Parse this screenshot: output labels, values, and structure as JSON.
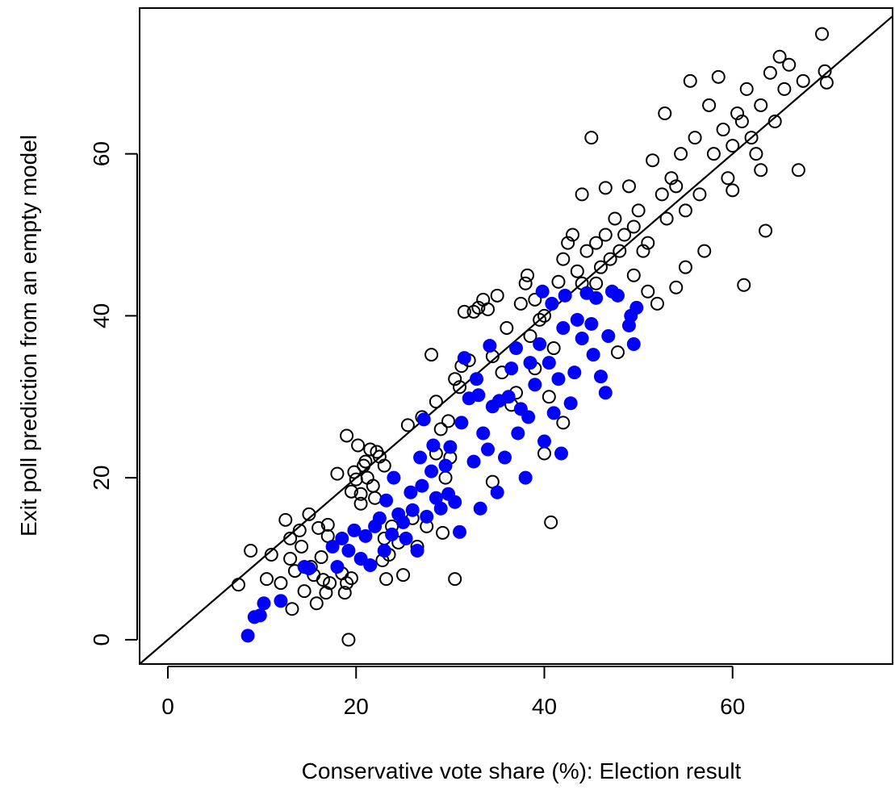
{
  "chart_data": {
    "type": "scatter",
    "title": "",
    "xlabel": "Conservative vote share (%): Election result",
    "ylabel": "Exit poll prediction from an empty model",
    "xlim": [
      -3,
      77
    ],
    "ylim": [
      -3,
      78
    ],
    "x_ticks": [
      0,
      20,
      40,
      60
    ],
    "y_ticks": [
      0,
      20,
      40,
      60
    ],
    "grid": false,
    "legend": "none",
    "reference_line": {
      "slope": 1,
      "intercept": 0
    },
    "colors": {
      "open": "#000000",
      "filled": "#0000ff"
    },
    "series": [
      {
        "style": "open-circle",
        "points": [
          [
            7.5,
            6.8
          ],
          [
            8.8,
            11
          ],
          [
            10.5,
            7.5
          ],
          [
            11,
            10.5
          ],
          [
            12,
            7
          ],
          [
            12.5,
            14.8
          ],
          [
            13,
            12.5
          ],
          [
            13,
            10
          ],
          [
            13.2,
            3.8
          ],
          [
            13.5,
            8.5
          ],
          [
            14,
            13.5
          ],
          [
            14.2,
            11.5
          ],
          [
            14.5,
            6
          ],
          [
            15,
            15.5
          ],
          [
            15.2,
            9
          ],
          [
            15.5,
            8
          ],
          [
            15.8,
            4.5
          ],
          [
            16,
            13.8
          ],
          [
            16.3,
            10.2
          ],
          [
            16.5,
            7.4
          ],
          [
            16.8,
            5.8
          ],
          [
            17,
            14.2
          ],
          [
            17,
            12.8
          ],
          [
            17.2,
            7
          ],
          [
            18,
            20.5
          ],
          [
            18.5,
            8.2
          ],
          [
            18.8,
            5.8
          ],
          [
            19,
            7
          ],
          [
            19,
            25.2
          ],
          [
            19.2,
            0
          ],
          [
            19.5,
            18.3
          ],
          [
            19.5,
            7.6
          ],
          [
            19.8,
            20.7
          ],
          [
            20,
            19.8
          ],
          [
            20.2,
            24
          ],
          [
            20.5,
            18
          ],
          [
            20.5,
            16.8
          ],
          [
            20.8,
            21.5
          ],
          [
            21,
            22
          ],
          [
            21.2,
            20
          ],
          [
            21.5,
            23.5
          ],
          [
            21.8,
            19
          ],
          [
            22,
            17.5
          ],
          [
            22.2,
            23.2
          ],
          [
            22.5,
            22.6
          ],
          [
            22.8,
            9.8
          ],
          [
            23,
            21.5
          ],
          [
            23,
            12.5
          ],
          [
            23.2,
            7.5
          ],
          [
            23.5,
            10.5
          ],
          [
            23.8,
            14
          ],
          [
            24.5,
            12
          ],
          [
            25,
            8
          ],
          [
            25.5,
            26.5
          ],
          [
            26,
            15
          ],
          [
            26.5,
            11.5
          ],
          [
            27,
            27.5
          ],
          [
            27.5,
            14
          ],
          [
            28,
            35.2
          ],
          [
            28.5,
            29.4
          ],
          [
            28.5,
            23
          ],
          [
            29,
            26
          ],
          [
            29.2,
            13.2
          ],
          [
            29.5,
            20
          ],
          [
            29.8,
            27
          ],
          [
            30,
            22.5
          ],
          [
            30.5,
            32.2
          ],
          [
            30.5,
            7.5
          ],
          [
            31,
            31.2
          ],
          [
            31.2,
            33.8
          ],
          [
            31.5,
            40.5
          ],
          [
            32,
            34.5
          ],
          [
            32.5,
            40.5
          ],
          [
            33,
            41
          ],
          [
            33.5,
            42
          ],
          [
            34,
            40.8
          ],
          [
            34.5,
            35
          ],
          [
            34.5,
            19.5
          ],
          [
            35,
            42.5
          ],
          [
            35.5,
            33
          ],
          [
            36,
            38.5
          ],
          [
            36.5,
            29
          ],
          [
            37,
            30.5
          ],
          [
            37.5,
            41.5
          ],
          [
            38,
            44
          ],
          [
            38.2,
            45
          ],
          [
            38.5,
            37.5
          ],
          [
            39,
            42
          ],
          [
            39,
            33.5
          ],
          [
            39.5,
            39.5
          ],
          [
            40,
            40
          ],
          [
            40,
            23
          ],
          [
            40.5,
            30
          ],
          [
            40.7,
            14.5
          ],
          [
            41,
            36
          ],
          [
            41.5,
            44.2
          ],
          [
            42,
            47
          ],
          [
            42,
            26.8
          ],
          [
            42.5,
            49
          ],
          [
            43,
            50
          ],
          [
            43.5,
            45.5
          ],
          [
            44,
            55
          ],
          [
            44,
            44
          ],
          [
            44.5,
            48
          ],
          [
            45,
            62
          ],
          [
            45.5,
            49
          ],
          [
            45.5,
            44
          ],
          [
            46,
            46
          ],
          [
            46.5,
            55.8
          ],
          [
            46.5,
            50
          ],
          [
            47,
            47
          ],
          [
            47.5,
            52
          ],
          [
            47.8,
            35.5
          ],
          [
            48,
            48
          ],
          [
            48.5,
            50
          ],
          [
            49,
            56
          ],
          [
            49.5,
            45
          ],
          [
            49.5,
            51
          ],
          [
            50,
            53
          ],
          [
            50.5,
            48
          ],
          [
            51,
            49
          ],
          [
            51,
            43
          ],
          [
            51.5,
            59.2
          ],
          [
            52,
            41.5
          ],
          [
            52.5,
            55
          ],
          [
            52.8,
            65
          ],
          [
            53,
            52
          ],
          [
            53.5,
            57
          ],
          [
            54,
            56
          ],
          [
            54,
            43.5
          ],
          [
            54.5,
            60
          ],
          [
            55,
            53
          ],
          [
            55,
            46
          ],
          [
            55.5,
            69
          ],
          [
            56,
            62
          ],
          [
            56.5,
            55
          ],
          [
            57,
            48
          ],
          [
            57.5,
            66
          ],
          [
            58,
            60
          ],
          [
            58.5,
            69.5
          ],
          [
            59,
            63
          ],
          [
            59.5,
            57
          ],
          [
            60,
            61
          ],
          [
            60,
            55.5
          ],
          [
            60.5,
            65
          ],
          [
            61,
            64
          ],
          [
            61.2,
            43.8
          ],
          [
            61.5,
            68
          ],
          [
            62,
            62
          ],
          [
            62.5,
            60
          ],
          [
            63,
            66
          ],
          [
            63,
            58
          ],
          [
            63.5,
            50.5
          ],
          [
            64,
            70
          ],
          [
            64.5,
            64
          ],
          [
            65,
            72
          ],
          [
            65.5,
            68
          ],
          [
            66,
            71
          ],
          [
            67,
            58
          ],
          [
            67.5,
            69
          ],
          [
            69.5,
            74.8
          ],
          [
            69.8,
            70.2
          ],
          [
            70,
            68.8
          ]
        ]
      },
      {
        "style": "filled-circle",
        "points": [
          [
            8.5,
            0.5
          ],
          [
            9.2,
            2.8
          ],
          [
            9.8,
            3
          ],
          [
            10.2,
            4.5
          ],
          [
            12,
            4.8
          ],
          [
            14.5,
            9
          ],
          [
            15,
            8.8
          ],
          [
            17.5,
            11.5
          ],
          [
            18,
            9
          ],
          [
            18.5,
            12.5
          ],
          [
            19.2,
            11
          ],
          [
            19.8,
            13.5
          ],
          [
            20.5,
            10
          ],
          [
            21,
            12.8
          ],
          [
            21.5,
            9.2
          ],
          [
            22,
            14
          ],
          [
            22.5,
            15
          ],
          [
            23,
            11
          ],
          [
            23.2,
            17.2
          ],
          [
            23.8,
            13
          ],
          [
            24,
            20
          ],
          [
            24.5,
            15.5
          ],
          [
            25,
            14.5
          ],
          [
            25.3,
            12.5
          ],
          [
            25.8,
            18.2
          ],
          [
            26,
            16
          ],
          [
            26.5,
            11
          ],
          [
            26.8,
            22.5
          ],
          [
            27,
            19
          ],
          [
            27.2,
            27.2
          ],
          [
            27.5,
            15.2
          ],
          [
            28,
            20.8
          ],
          [
            28.2,
            24
          ],
          [
            28.5,
            17.5
          ],
          [
            29,
            16.2
          ],
          [
            29.5,
            21.5
          ],
          [
            29.8,
            18
          ],
          [
            30,
            23.8
          ],
          [
            30.5,
            17
          ],
          [
            31,
            13.3
          ],
          [
            31.2,
            26.8
          ],
          [
            31.5,
            34.8
          ],
          [
            32,
            29.8
          ],
          [
            32.5,
            22
          ],
          [
            32.8,
            32.2
          ],
          [
            33,
            30.2
          ],
          [
            33.2,
            16.2
          ],
          [
            33.5,
            25.5
          ],
          [
            34,
            23.5
          ],
          [
            34.2,
            36.3
          ],
          [
            34.5,
            28.8
          ],
          [
            35,
            18.2
          ],
          [
            35.2,
            29.5
          ],
          [
            35.8,
            22.5
          ],
          [
            36.2,
            30
          ],
          [
            36.5,
            33.5
          ],
          [
            37,
            36
          ],
          [
            37.2,
            25.5
          ],
          [
            37.5,
            28.5
          ],
          [
            38,
            20
          ],
          [
            38.3,
            27.5
          ],
          [
            38.5,
            34.2
          ],
          [
            39,
            31.5
          ],
          [
            39.5,
            36.5
          ],
          [
            39.8,
            43
          ],
          [
            40,
            24.5
          ],
          [
            40.5,
            34.2
          ],
          [
            40.8,
            41.5
          ],
          [
            41,
            28
          ],
          [
            41.5,
            32.2
          ],
          [
            41.8,
            23
          ],
          [
            42,
            38.5
          ],
          [
            42.2,
            42.5
          ],
          [
            42.8,
            29.2
          ],
          [
            43.2,
            33
          ],
          [
            43.5,
            39.5
          ],
          [
            44,
            37.2
          ],
          [
            44.5,
            42.8
          ],
          [
            45,
            39
          ],
          [
            45.2,
            35.2
          ],
          [
            45.5,
            42.2
          ],
          [
            46,
            32.5
          ],
          [
            46.5,
            30.5
          ],
          [
            46.8,
            37.5
          ],
          [
            47.2,
            43
          ],
          [
            47.8,
            42.5
          ],
          [
            49,
            38.8
          ],
          [
            49.2,
            40
          ],
          [
            49.5,
            36.5
          ],
          [
            49.8,
            41
          ]
        ]
      }
    ]
  }
}
